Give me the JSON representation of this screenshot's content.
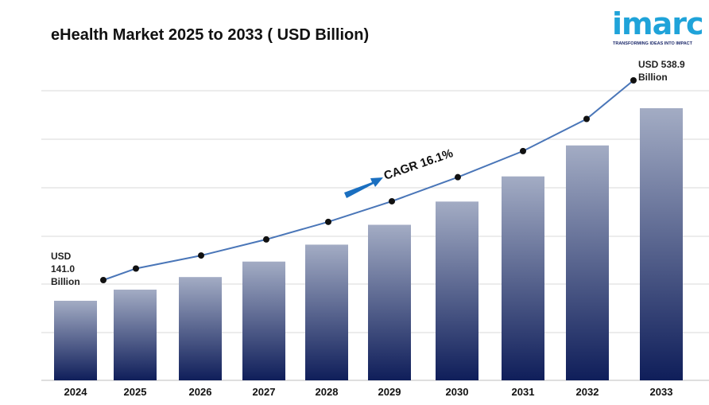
{
  "title": "eHealth Market 2025 to 2033 ( USD Billion)",
  "logo": {
    "brand": "imarc",
    "tagline": "TRANSFORMING IDEAS INTO IMPACT"
  },
  "chart_data": {
    "type": "bar",
    "title": "eHealth Market 2025 to 2033 ( USD Billion)",
    "xlabel": "",
    "ylabel": "",
    "categories": [
      "2024",
      "2025",
      "2026",
      "2027",
      "2028",
      "2029",
      "2030",
      "2031",
      "2032",
      "2033"
    ],
    "values": [
      141.0,
      164.0,
      190.0,
      222.0,
      257.0,
      298.0,
      346.0,
      398.0,
      462.0,
      538.9
    ],
    "line_overlay": true,
    "grid": true,
    "ylim": [
      0,
      600
    ],
    "colors": {
      "bar_top": "#a3acc4",
      "bar_bottom": "#0f1e5a",
      "line": "#4a76b8",
      "marker": "#111111",
      "arrow": "#1a6fc0"
    },
    "annotations": {
      "start": [
        "USD",
        "141.0",
        "Billion"
      ],
      "end": [
        "USD 538.9",
        "Billion"
      ],
      "cagr": "CAGR  16.1%"
    }
  }
}
